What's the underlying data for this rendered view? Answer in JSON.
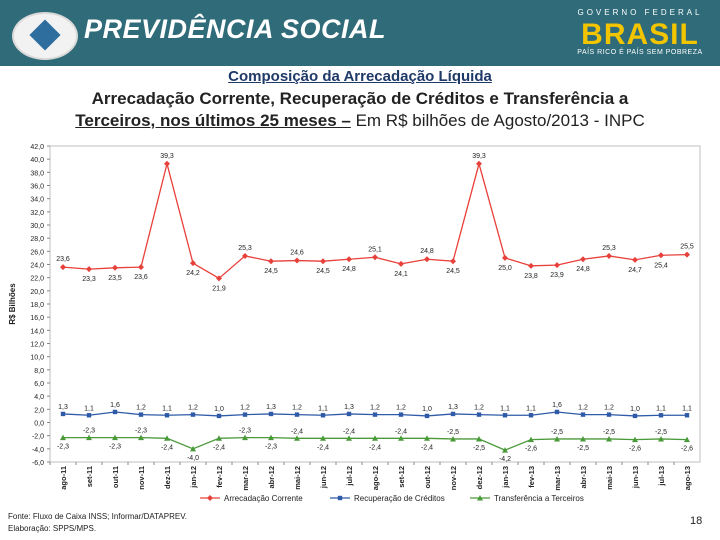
{
  "header": {
    "title": "PREVIDÊNCIA SOCIAL",
    "gov_top": "GOVERNO FEDERAL",
    "gov_logo": "BRASIL",
    "gov_sub": "PAÍS RICO É PAÍS SEM POBREZA"
  },
  "titles": {
    "line1": "Composição da Arrecadação Líquida",
    "line2": "Arrecadação Corrente, Recuperação de Créditos e Transferência a",
    "line3_bold": "Terceiros, nos últimos 25 meses –",
    "line3_rest": " Em R$ bilhões de Agosto/2013 - INPC"
  },
  "footer": {
    "source": "Fonte: Fluxo de Caixa INSS; Informar/DATAPREV.",
    "prepared": "Elaboração: SPPS/MPS.",
    "page": "18"
  },
  "chart_data": {
    "type": "line",
    "ylabel": "R$ Bilhões",
    "ylim": [
      -6,
      42
    ],
    "yticks": [
      "42,0",
      "40,0",
      "38,0",
      "36,0",
      "34,0",
      "32,0",
      "30,0",
      "28,0",
      "26,0",
      "24,0",
      "22,0",
      "20,0",
      "18,0",
      "16,0",
      "14,0",
      "12,0",
      "10,0",
      "8,0",
      "6,0",
      "4,0",
      "2,0",
      "0,0",
      "-2,0",
      "-4,0",
      "-6,0"
    ],
    "categories": [
      "ago-11",
      "set-11",
      "out-11",
      "nov-11",
      "dez-11",
      "jan-12",
      "fev-12",
      "mar-12",
      "abr-12",
      "mai-12",
      "jun-12",
      "jul-12",
      "ago-12",
      "set-12",
      "out-12",
      "nov-12",
      "dez-12",
      "jan-13",
      "fev-13",
      "mar-13",
      "abr-13",
      "mai-13",
      "jun-13",
      "jul-13",
      "ago-13"
    ],
    "legend_position": "bottom",
    "series": [
      {
        "name": "Arrecadação Corrente",
        "color": "#e8403a",
        "marker": "diamond",
        "values": [
          23.6,
          23.3,
          23.5,
          23.6,
          39.3,
          24.2,
          21.9,
          25.3,
          24.5,
          24.6,
          24.5,
          24.8,
          25.1,
          24.1,
          24.8,
          24.5,
          39.3,
          25.0,
          23.8,
          23.9,
          24.8,
          25.3,
          24.7,
          25.4,
          25.5
        ],
        "labels": [
          "23,6",
          "23,3",
          "23,5",
          "23,6",
          "39,3",
          "24,2",
          "21,9",
          "25,3",
          "24,5",
          "24,6",
          "24,5",
          "24,8",
          "25,1",
          "24,1",
          "24,8",
          "24,5",
          "39,3",
          "25,0",
          "23,8",
          "23,9",
          "24,8",
          "25,3",
          "24,7",
          "25,4",
          "25,5"
        ]
      },
      {
        "name": "Recuperação de Créditos",
        "color": "#2f5aa8",
        "marker": "square",
        "values": [
          1.3,
          1.1,
          1.6,
          1.2,
          1.1,
          1.2,
          1.0,
          1.2,
          1.3,
          1.2,
          1.1,
          1.3,
          1.2,
          1.2,
          1.0,
          1.3,
          1.2,
          1.1,
          1.1,
          1.6,
          1.2,
          1.2,
          1.0,
          1.1,
          1.1
        ],
        "labels": [
          "1,3",
          "1,1",
          "1,6",
          "1,2",
          "1,1",
          "1,2",
          "1,0",
          "1,2",
          "1,3",
          "1,2",
          "1,1",
          "1,3",
          "1,2",
          "1,2",
          "1,0",
          "1,3",
          "1,2",
          "1,1",
          "1,1",
          "1,6",
          "1,2",
          "1,2",
          "1,0",
          "1,1",
          "1,1"
        ]
      },
      {
        "name": "Transferência a Terceiros",
        "color": "#4a9a3a",
        "marker": "triangle",
        "values": [
          -2.3,
          -2.3,
          -2.3,
          -2.3,
          -2.4,
          -4.0,
          -2.4,
          -2.3,
          -2.3,
          -2.4,
          -2.4,
          -2.4,
          -2.4,
          -2.4,
          -2.4,
          -2.5,
          -2.5,
          -4.2,
          -2.6,
          -2.5,
          -2.5,
          -2.5,
          -2.6,
          -2.5,
          -2.6
        ],
        "labels": [
          "-2,3",
          "-2,3",
          "-2,3",
          "-2,3",
          "-2,4",
          "-4,0",
          "-2,4",
          "-2,3",
          "-2,3",
          "-2,4",
          "-2,4",
          "-2,4",
          "-2,4",
          "-2,4",
          "-2,4",
          "-2,5",
          "-2,5",
          "-4,2",
          "-2,6",
          "-2,5",
          "-2,5",
          "-2,5",
          "-2,6",
          "-2,5",
          "-2,6"
        ]
      }
    ]
  }
}
